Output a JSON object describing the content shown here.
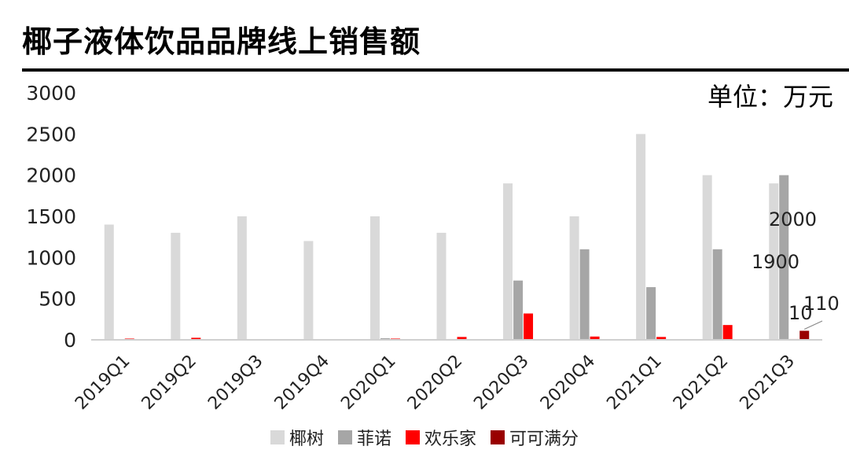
{
  "title": "椰子液体饮品品牌线上销售额",
  "unit_label": "单位：万元",
  "chart_data": {
    "type": "bar",
    "categories": [
      "2019Q1",
      "2019Q2",
      "2019Q3",
      "2019Q4",
      "2020Q1",
      "2020Q2",
      "2020Q3",
      "2020Q4",
      "2021Q1",
      "2021Q2",
      "2021Q3"
    ],
    "series": [
      {
        "name": "椰树",
        "color": "#d9d9d9",
        "values": [
          1400,
          1300,
          1500,
          1200,
          1500,
          1300,
          1900,
          1500,
          2500,
          2000,
          1900
        ]
      },
      {
        "name": "菲诺",
        "color": "#a6a6a6",
        "values": [
          0,
          0,
          0,
          0,
          20,
          10,
          720,
          1100,
          640,
          1100,
          2000
        ]
      },
      {
        "name": "欢乐家",
        "color": "#ff0000",
        "values": [
          15,
          25,
          0,
          0,
          15,
          35,
          320,
          40,
          35,
          180,
          10
        ]
      },
      {
        "name": "可可满分",
        "color": "#990000",
        "values": [
          0,
          0,
          0,
          0,
          0,
          0,
          0,
          0,
          0,
          0,
          110
        ]
      }
    ],
    "y_ticks": [
      0,
      500,
      1000,
      1500,
      2000,
      2500,
      3000
    ],
    "ylim": [
      0,
      3000
    ],
    "data_labels": [
      "2000",
      "1900",
      "10",
      "110"
    ],
    "legend_position": "bottom",
    "grid": false
  }
}
